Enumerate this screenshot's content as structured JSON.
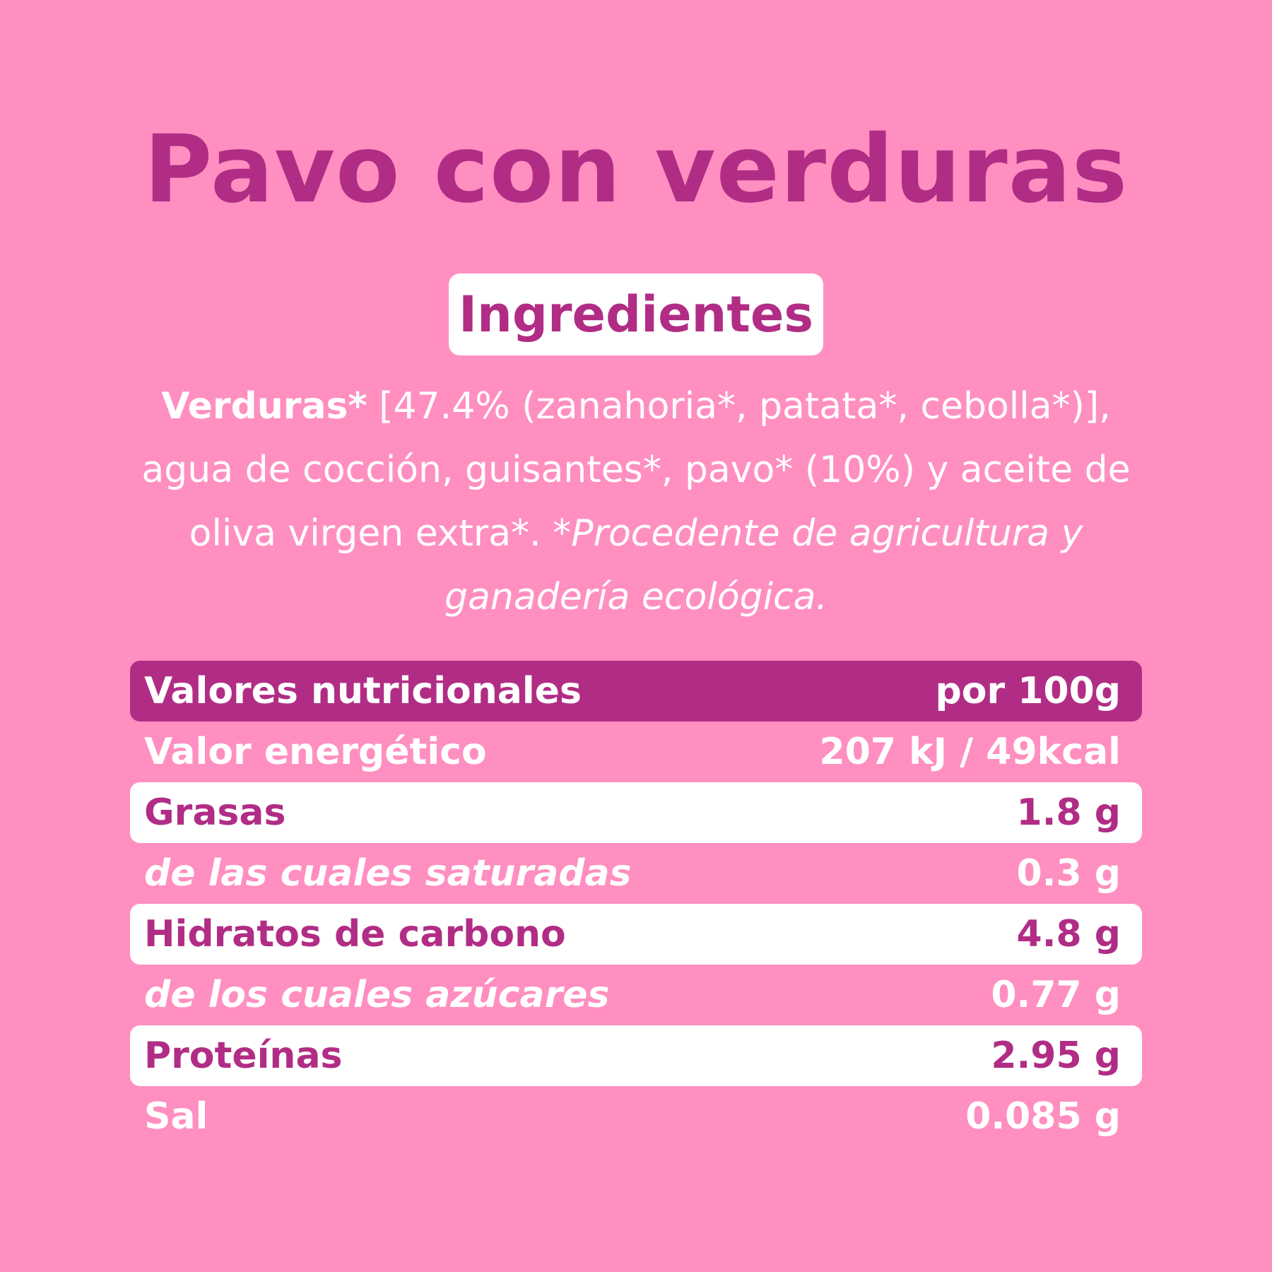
{
  "title": "Pavo con verduras",
  "ingredients_heading": "Ingredientes",
  "ingredients": {
    "lead": "Verduras*",
    "body": " [47.4% (zanahoria*, patata*, cebolla*)], agua de cocción, guisantes*, pavo* (10%) y aceite de oliva virgen extra*. ",
    "note": "*Procedente de agricultura y ganadería ecológica."
  },
  "nutrition": {
    "header": {
      "label": "Valores nutricionales",
      "value": "por 100g"
    },
    "rows": [
      {
        "label": "Valor energético",
        "value": "207 kJ / 49kcal"
      },
      {
        "label": "Grasas",
        "value": "1.8 g"
      },
      {
        "label": "de las cuales saturadas",
        "value": "0.3 g"
      },
      {
        "label": "Hidratos de carbono",
        "value": "4.8 g"
      },
      {
        "label": "de los cuales azúcares",
        "value": "0.77 g"
      },
      {
        "label": "Proteínas",
        "value": "2.95 g"
      },
      {
        "label": "Sal",
        "value": "0.085 g"
      }
    ]
  },
  "colors": {
    "background": "#ff8fc0",
    "accent": "#b12d85",
    "white": "#ffffff"
  }
}
